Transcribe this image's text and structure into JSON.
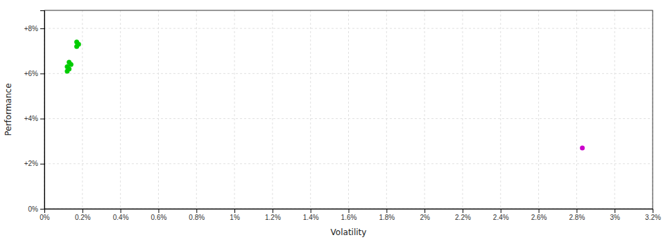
{
  "chart_data": {
    "type": "scatter",
    "xlabel": "Volatility",
    "ylabel": "Performance",
    "xlim": [
      0,
      0.032
    ],
    "ylim": [
      0,
      0.088
    ],
    "xticks": [
      {
        "value": 0,
        "label": "0%"
      },
      {
        "value": 0.002,
        "label": "0.2%"
      },
      {
        "value": 0.004,
        "label": "0.4%"
      },
      {
        "value": 0.006,
        "label": "0.6%"
      },
      {
        "value": 0.008,
        "label": "0.8%"
      },
      {
        "value": 0.01,
        "label": "1%"
      },
      {
        "value": 0.012,
        "label": "1.2%"
      },
      {
        "value": 0.014,
        "label": "1.4%"
      },
      {
        "value": 0.016,
        "label": "1.6%"
      },
      {
        "value": 0.018,
        "label": "1.8%"
      },
      {
        "value": 0.02,
        "label": "2%"
      },
      {
        "value": 0.022,
        "label": "2.2%"
      },
      {
        "value": 0.024,
        "label": "2.4%"
      },
      {
        "value": 0.026,
        "label": "2.6%"
      },
      {
        "value": 0.028,
        "label": "2.8%"
      },
      {
        "value": 0.03,
        "label": "3%"
      },
      {
        "value": 0.032,
        "label": "3.2%"
      }
    ],
    "yticks": [
      {
        "value": 0,
        "label": "0%"
      },
      {
        "value": 0.02,
        "label": "+2%"
      },
      {
        "value": 0.04,
        "label": "+4%"
      },
      {
        "value": 0.06,
        "label": "+6%"
      },
      {
        "value": 0.08,
        "label": "+8%"
      }
    ],
    "grid": true,
    "series": [
      {
        "color": "#00cc00",
        "x": [
          0.0017,
          0.0018,
          0.0017,
          0.0012,
          0.0013,
          0.0013,
          0.0012,
          0.0014
        ],
        "values": [
          0.072,
          0.073,
          0.074,
          0.063,
          0.065,
          0.062,
          0.061,
          0.064
        ]
      },
      {
        "color": "#cc00cc",
        "x": [
          0.0283
        ],
        "values": [
          0.027
        ]
      }
    ]
  }
}
